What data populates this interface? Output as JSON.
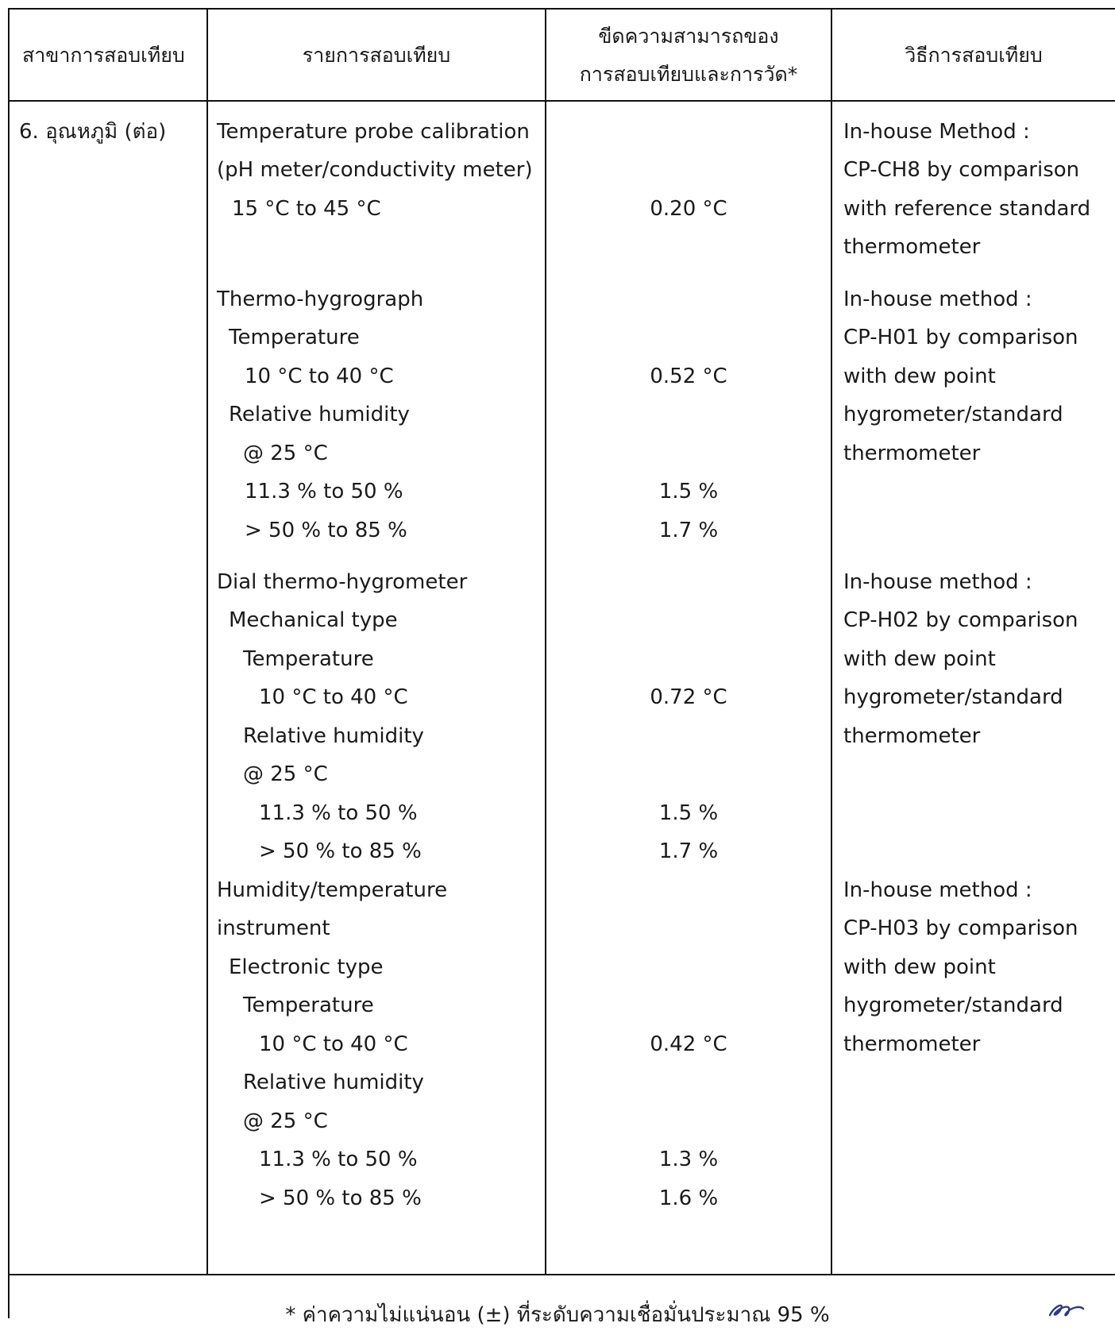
{
  "header": {
    "branch": "สาขาการสอบเทียบ",
    "item": "รายการสอบเทียบ",
    "capability_line1": "ขีดความสามารถของ",
    "capability_line2": "การสอบเทียบและการวัด*",
    "method": "วิธีการสอบเทียบ"
  },
  "branch": "6. อุณหภูมิ (ต่อ)",
  "sections": [
    {
      "items": [
        "Temperature probe calibration",
        "(pH meter/conductivity meter)",
        "15 °C  to 45 °C"
      ],
      "capabilities": [
        "0.20 °C"
      ],
      "method": [
        "In-house Method :",
        "CP-CH8 by comparison",
        "with reference standard",
        "thermometer"
      ]
    },
    {
      "items": [
        "Thermo-hygrograph",
        "Temperature",
        "10 °C to 40 °C",
        "Relative humidity",
        "@ 25 °C",
        "11.3 % to 50 %",
        "> 50 % to 85 %"
      ],
      "capabilities": [
        "0.52 °C",
        "1.5 %",
        "1.7 %"
      ],
      "method": [
        "In-house method :",
        "CP-H01 by comparison",
        "with dew point",
        "hygrometer/standard",
        "thermometer"
      ]
    },
    {
      "items": [
        "Dial thermo-hygrometer",
        "Mechanical type",
        "Temperature",
        "10 °C to 40 °C",
        "Relative humidity",
        "@ 25 °C",
        "11.3 % to 50 %",
        "> 50 % to 85 %"
      ],
      "capabilities": [
        "0.72 °C",
        "1.5 %",
        "1.7 %"
      ],
      "method": [
        "In-house method :",
        "CP-H02 by comparison",
        "with dew point",
        "hygrometer/standard",
        "thermometer"
      ]
    },
    {
      "items": [
        "Humidity/temperature",
        "instrument",
        "Electronic type",
        "Temperature",
        "10 °C to 40 °C",
        "Relative humidity",
        "@ 25 °C",
        "11.3 % to 50 %",
        "> 50 % to 85 %"
      ],
      "capabilities": [
        "0.42 °C",
        "1.3 %",
        "1.6 %"
      ],
      "method": [
        "In-house method :",
        "CP-H03 by comparison",
        "with dew point",
        "hygrometer/standard",
        "thermometer"
      ]
    }
  ],
  "footnote": "* ค่าความไม่แน่นอน (±) ที่ระดับความเชื่อมั่นประมาณ 95 %",
  "initials": "signature-initials"
}
